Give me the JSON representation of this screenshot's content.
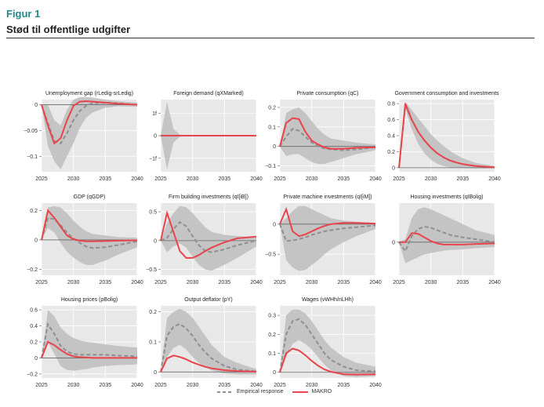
{
  "figure": {
    "label": "Figur 1",
    "title": "Stød til offentlige udgifter"
  },
  "legend": {
    "empirical": "Empirical response",
    "makro": "MAKRO"
  },
  "colors": {
    "makro": "#e8444b",
    "empirical": "#8f8f8f",
    "band": "#bdbdbd",
    "panel_bg": "#e8e8e8"
  },
  "chart_data": [
    {
      "type": "line",
      "title": "Unemployment gap (rLedig-srLedig)",
      "xlim": [
        2025,
        2040
      ],
      "xticks": [
        2025,
        2030,
        2035,
        2040
      ],
      "ylim": [
        -0.13,
        0.01
      ],
      "yticks": [
        0,
        -0.05,
        -0.1
      ],
      "ytick_labels": [
        "0",
        "−0.05",
        "−0.1"
      ],
      "x": [
        2025,
        2026,
        2027,
        2028,
        2029,
        2030,
        2031,
        2032,
        2033,
        2035,
        2037,
        2040
      ],
      "makro": [
        0,
        -0.04,
        -0.075,
        -0.065,
        -0.03,
        -0.002,
        0.006,
        0.007,
        0.006,
        0.004,
        0.002,
        0
      ],
      "empirical": [
        0,
        -0.035,
        -0.07,
        -0.075,
        -0.055,
        -0.03,
        -0.012,
        -0.002,
        0.003,
        0.004,
        0.003,
        0
      ],
      "band_upper": [
        0,
        0.0,
        -0.03,
        -0.04,
        -0.01,
        0.01,
        0.015,
        0.015,
        0.014,
        0.01,
        0.007,
        0.004
      ],
      "band_lower": [
        0,
        -0.08,
        -0.11,
        -0.125,
        -0.1,
        -0.075,
        -0.045,
        -0.025,
        -0.015,
        -0.006,
        -0.003,
        -0.004
      ]
    },
    {
      "type": "line",
      "title": "Foreign demand (qXMarked)",
      "xlim": [
        2025,
        2040
      ],
      "xticks": [
        2025,
        2030,
        2035,
        2040
      ],
      "ylim": [
        -1.6,
        1.6
      ],
      "yticks": [
        1,
        0,
        -1
      ],
      "ytick_labels": [
        "1f",
        "0",
        "−1f"
      ],
      "x": [
        2025,
        2026,
        2027,
        2028,
        2029,
        2030,
        2035,
        2040
      ],
      "makro": [
        0,
        0,
        0,
        0,
        0,
        0,
        0,
        0
      ],
      "empirical": [
        0,
        0,
        0,
        0,
        0,
        0,
        0,
        0
      ],
      "band_upper": [
        0,
        1.5,
        0.3,
        0.05,
        0.02,
        0.01,
        0.005,
        0
      ],
      "band_lower": [
        0,
        -1.5,
        -0.3,
        -0.05,
        -0.02,
        -0.01,
        -0.005,
        0
      ]
    },
    {
      "type": "line",
      "title": "Private consumption (qC)",
      "xlim": [
        2025,
        2040
      ],
      "xticks": [
        2025,
        2030,
        2035,
        2040
      ],
      "ylim": [
        -0.13,
        0.24
      ],
      "yticks": [
        0.2,
        0.1,
        0,
        -0.1
      ],
      "ytick_labels": [
        "0.2",
        "0.1",
        "0",
        "−0.1"
      ],
      "x": [
        2025,
        2026,
        2027,
        2028,
        2029,
        2030,
        2031,
        2032,
        2033,
        2035,
        2037,
        2040
      ],
      "makro": [
        0,
        0.12,
        0.145,
        0.14,
        0.075,
        0.03,
        0.01,
        -0.005,
        -0.012,
        -0.012,
        -0.007,
        -0.005
      ],
      "empirical": [
        0,
        0.05,
        0.09,
        0.08,
        0.05,
        0.02,
        0.0,
        -0.01,
        -0.015,
        -0.02,
        -0.015,
        -0.005
      ],
      "band_upper": [
        0,
        0.17,
        0.19,
        0.2,
        0.17,
        0.13,
        0.09,
        0.06,
        0.04,
        0.03,
        0.02,
        0.01
      ],
      "band_lower": [
        0,
        -0.05,
        -0.04,
        -0.04,
        -0.06,
        -0.08,
        -0.09,
        -0.09,
        -0.08,
        -0.06,
        -0.04,
        -0.02
      ]
    },
    {
      "type": "line",
      "title": "Government consumption and investments",
      "xlim": [
        2025,
        2040
      ],
      "xticks": [
        2025,
        2030,
        2035,
        2040
      ],
      "ylim": [
        -0.05,
        0.85
      ],
      "yticks": [
        0.8,
        0.6,
        0.4,
        0.2,
        0
      ],
      "ytick_labels": [
        "0.8",
        "0.6",
        "0.4",
        "0.2",
        "0"
      ],
      "x": [
        2025,
        2026,
        2027,
        2028,
        2029,
        2030,
        2031,
        2032,
        2033,
        2034,
        2035,
        2037,
        2040
      ],
      "makro": [
        0,
        0.8,
        0.6,
        0.45,
        0.34,
        0.25,
        0.18,
        0.13,
        0.09,
        0.065,
        0.045,
        0.02,
        0.005
      ],
      "empirical": [
        0,
        0.78,
        0.6,
        0.45,
        0.34,
        0.25,
        0.18,
        0.13,
        0.09,
        0.065,
        0.045,
        0.02,
        0.005
      ],
      "band_upper": [
        0,
        0.82,
        0.72,
        0.62,
        0.52,
        0.42,
        0.34,
        0.27,
        0.21,
        0.16,
        0.12,
        0.06,
        0.02
      ],
      "band_lower": [
        0,
        0.74,
        0.48,
        0.3,
        0.18,
        0.1,
        0.05,
        0.02,
        0.005,
        0,
        -0.005,
        -0.008,
        -0.008
      ]
    },
    {
      "type": "line",
      "title": "GDP (qGDP)",
      "xlim": [
        2025,
        2040
      ],
      "xticks": [
        2025,
        2030,
        2035,
        2040
      ],
      "ylim": [
        -0.24,
        0.25
      ],
      "yticks": [
        0.2,
        0,
        -0.2
      ],
      "ytick_labels": [
        "0.2",
        "0",
        "−0.2"
      ],
      "x": [
        2025,
        2026,
        2027,
        2028,
        2029,
        2030,
        2031,
        2032,
        2033,
        2035,
        2037,
        2040
      ],
      "makro": [
        0,
        0.2,
        0.15,
        0.09,
        0.03,
        0.005,
        -0.005,
        -0.01,
        -0.01,
        -0.008,
        -0.005,
        -0.003
      ],
      "empirical": [
        0,
        0.15,
        0.14,
        0.1,
        0.05,
        0.01,
        -0.02,
        -0.045,
        -0.055,
        -0.05,
        -0.035,
        -0.01
      ],
      "band_upper": [
        0,
        0.22,
        0.23,
        0.22,
        0.18,
        0.13,
        0.09,
        0.06,
        0.04,
        0.03,
        0.02,
        0.015
      ],
      "band_lower": [
        0,
        0.08,
        0.05,
        -0.02,
        -0.08,
        -0.12,
        -0.15,
        -0.17,
        -0.17,
        -0.14,
        -0.1,
        -0.05
      ]
    },
    {
      "type": "line",
      "title": "Firm building investments (qI[iB])",
      "xlim": [
        2025,
        2040
      ],
      "xticks": [
        2025,
        2030,
        2035,
        2040
      ],
      "ylim": [
        -0.6,
        0.65
      ],
      "yticks": [
        0.5,
        0,
        -0.5
      ],
      "ytick_labels": [
        "0.5",
        "0",
        "−0.5"
      ],
      "x": [
        2025,
        2026,
        2027,
        2028,
        2029,
        2030,
        2031,
        2032,
        2033,
        2035,
        2037,
        2040
      ],
      "makro": [
        0,
        0.48,
        0.15,
        -0.18,
        -0.3,
        -0.3,
        -0.25,
        -0.18,
        -0.12,
        -0.03,
        0.04,
        0.07
      ],
      "empirical": [
        0,
        0.05,
        0.2,
        0.32,
        0.25,
        0.08,
        -0.08,
        -0.18,
        -0.2,
        -0.15,
        -0.08,
        0
      ],
      "band_upper": [
        0,
        0.3,
        0.48,
        0.6,
        0.58,
        0.48,
        0.35,
        0.23,
        0.15,
        0.1,
        0.08,
        0.06
      ],
      "band_lower": [
        0,
        -0.2,
        -0.1,
        -0.05,
        -0.12,
        -0.28,
        -0.42,
        -0.5,
        -0.52,
        -0.42,
        -0.3,
        -0.1
      ]
    },
    {
      "type": "line",
      "title": "Private machine investments (qI[iM])",
      "xlim": [
        2025,
        2040
      ],
      "xticks": [
        2025,
        2030,
        2035,
        2040
      ],
      "ylim": [
        -0.85,
        0.35
      ],
      "yticks": [
        0,
        -0.5
      ],
      "ytick_labels": [
        "0",
        "−0.5"
      ],
      "x": [
        2025,
        2026,
        2027,
        2028,
        2029,
        2030,
        2031,
        2032,
        2033,
        2035,
        2037,
        2040
      ],
      "makro": [
        0,
        0.25,
        -0.12,
        -0.2,
        -0.17,
        -0.12,
        -0.07,
        -0.03,
        0,
        0.02,
        0.02,
        0.01
      ],
      "empirical": [
        0,
        -0.28,
        -0.27,
        -0.25,
        -0.22,
        -0.18,
        -0.15,
        -0.12,
        -0.1,
        -0.07,
        -0.05,
        -0.02
      ],
      "band_upper": [
        0,
        0.1,
        0.22,
        0.3,
        0.3,
        0.25,
        0.2,
        0.15,
        0.1,
        0.06,
        0.04,
        0.02
      ],
      "band_lower": [
        0,
        -0.6,
        -0.72,
        -0.78,
        -0.76,
        -0.68,
        -0.6,
        -0.5,
        -0.42,
        -0.3,
        -0.2,
        -0.08
      ]
    },
    {
      "type": "line",
      "title": "Housing investments (qIBolig)",
      "xlim": [
        2025,
        2040
      ],
      "xticks": [
        2025,
        2030,
        2035,
        2040
      ],
      "ylim": [
        -0.55,
        0.65
      ],
      "yticks": [
        0
      ],
      "ytick_labels": [
        "0"
      ],
      "x": [
        2025,
        2026,
        2027,
        2028,
        2029,
        2030,
        2031,
        2032,
        2033,
        2035,
        2037,
        2040
      ],
      "makro": [
        0,
        0.0,
        0.15,
        0.14,
        0.08,
        0.02,
        -0.02,
        -0.04,
        -0.04,
        -0.04,
        -0.03,
        -0.02
      ],
      "empirical": [
        0,
        -0.15,
        0.1,
        0.22,
        0.26,
        0.24,
        0.2,
        0.16,
        0.12,
        0.08,
        0.05,
        0
      ],
      "band_upper": [
        0,
        0.05,
        0.4,
        0.55,
        0.58,
        0.55,
        0.5,
        0.45,
        0.4,
        0.3,
        0.2,
        0.12
      ],
      "band_lower": [
        0,
        -0.35,
        -0.3,
        -0.25,
        -0.2,
        -0.18,
        -0.16,
        -0.14,
        -0.13,
        -0.12,
        -0.1,
        -0.08
      ]
    },
    {
      "type": "line",
      "title": "Housing prices (pBolig)",
      "xlim": [
        2025,
        2040
      ],
      "xticks": [
        2025,
        2030,
        2035,
        2040
      ],
      "ylim": [
        -0.25,
        0.65
      ],
      "yticks": [
        0.6,
        0.4,
        0.2,
        0,
        -0.2
      ],
      "ytick_labels": [
        "0.6",
        "0.4",
        "0.2",
        "0",
        "−0.2"
      ],
      "x": [
        2025,
        2026,
        2027,
        2028,
        2029,
        2030,
        2031,
        2032,
        2033,
        2035,
        2037,
        2040
      ],
      "makro": [
        0,
        0.2,
        0.16,
        0.1,
        0.05,
        0.02,
        0.01,
        0.005,
        0,
        0,
        0,
        0
      ],
      "empirical": [
        0,
        0.42,
        0.3,
        0.15,
        0.08,
        0.05,
        0.04,
        0.04,
        0.04,
        0.04,
        0.03,
        0.02
      ],
      "band_upper": [
        0,
        0.6,
        0.52,
        0.38,
        0.3,
        0.25,
        0.22,
        0.2,
        0.19,
        0.17,
        0.15,
        0.13
      ],
      "band_lower": [
        0,
        0.2,
        0.05,
        -0.1,
        -0.15,
        -0.16,
        -0.15,
        -0.14,
        -0.12,
        -0.1,
        -0.09,
        -0.08
      ]
    },
    {
      "type": "line",
      "title": "Output deflator (pY)",
      "xlim": [
        2025,
        2040
      ],
      "xticks": [
        2025,
        2030,
        2035,
        2040
      ],
      "ylim": [
        -0.02,
        0.22
      ],
      "yticks": [
        0.2,
        0.1,
        0
      ],
      "ytick_labels": [
        "0.2",
        "0.1",
        "0"
      ],
      "x": [
        2025,
        2026,
        2027,
        2028,
        2029,
        2030,
        2031,
        2032,
        2033,
        2035,
        2037,
        2040
      ],
      "makro": [
        0,
        0.045,
        0.055,
        0.05,
        0.042,
        0.032,
        0.024,
        0.017,
        0.012,
        0.006,
        0.003,
        0.001
      ],
      "empirical": [
        0,
        0.12,
        0.15,
        0.16,
        0.145,
        0.12,
        0.09,
        0.065,
        0.045,
        0.02,
        0.008,
        0.002
      ],
      "band_upper": [
        0,
        0.18,
        0.2,
        0.21,
        0.2,
        0.18,
        0.15,
        0.12,
        0.09,
        0.05,
        0.03,
        0.01
      ],
      "band_lower": [
        0,
        0.05,
        0.08,
        0.09,
        0.075,
        0.05,
        0.03,
        0.015,
        0.005,
        -0.005,
        -0.008,
        -0.008
      ]
    },
    {
      "type": "line",
      "title": "Wages (vWHh/nLHh)",
      "xlim": [
        2025,
        2040
      ],
      "xticks": [
        2025,
        2030,
        2035,
        2040
      ],
      "ylim": [
        -0.03,
        0.35
      ],
      "yticks": [
        0.3,
        0.2,
        0.1,
        0
      ],
      "ytick_labels": [
        "0.3",
        "0.2",
        "0.1",
        "0"
      ],
      "x": [
        2025,
        2026,
        2027,
        2028,
        2029,
        2030,
        2031,
        2032,
        2033,
        2035,
        2037,
        2040
      ],
      "makro": [
        0,
        0.1,
        0.125,
        0.115,
        0.09,
        0.06,
        0.035,
        0.015,
        0.003,
        -0.01,
        -0.012,
        -0.01
      ],
      "empirical": [
        0,
        0.2,
        0.27,
        0.28,
        0.25,
        0.2,
        0.15,
        0.1,
        0.065,
        0.03,
        0.01,
        0.005
      ],
      "band_upper": [
        0,
        0.3,
        0.33,
        0.33,
        0.31,
        0.27,
        0.22,
        0.17,
        0.13,
        0.08,
        0.05,
        0.03
      ],
      "band_lower": [
        0,
        0.08,
        0.15,
        0.17,
        0.15,
        0.12,
        0.08,
        0.04,
        0.01,
        -0.02,
        -0.025,
        -0.02
      ]
    }
  ]
}
